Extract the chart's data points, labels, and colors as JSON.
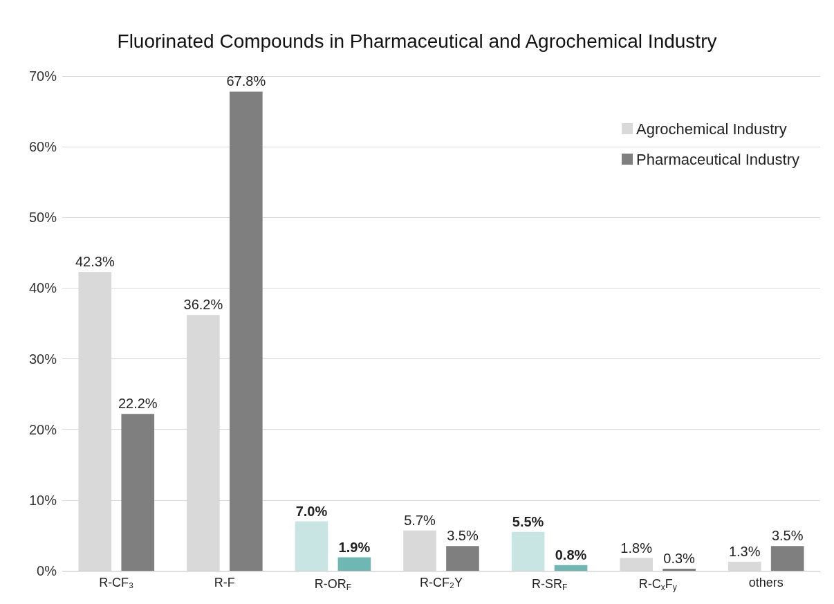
{
  "chart_data": {
    "type": "bar",
    "title": "Fluorinated Compounds in Pharmaceutical and Agrochemical Industry",
    "categories": [
      "R-CF₃",
      "R-F",
      "R-OR$_{F}$",
      "R-CF₂Y",
      "R-SR$_{F}$",
      "R-C$_{x}$F$_{y}$",
      "others"
    ],
    "series": [
      {
        "name": "Agrochemical Industry",
        "color": "#d9d9d9",
        "colors": [
          "#d9d9d9",
          "#d9d9d9",
          "#c8e4e3",
          "#d9d9d9",
          "#c8e4e3",
          "#d9d9d9",
          "#d9d9d9"
        ],
        "values": [
          42.3,
          36.2,
          7.0,
          5.7,
          5.5,
          1.8,
          1.3
        ],
        "value_labels": [
          "42.3%",
          "36.2%",
          "7.0%",
          "5.7%",
          "5.5%",
          "1.8%",
          "1.3%"
        ]
      },
      {
        "name": "Pharmaceutical Industry",
        "color": "#7f7f7f",
        "colors": [
          "#7f7f7f",
          "#7f7f7f",
          "#6fb7b3",
          "#7f7f7f",
          "#6fb7b3",
          "#7f7f7f",
          "#7f7f7f"
        ],
        "values": [
          22.2,
          67.8,
          1.9,
          3.5,
          0.8,
          0.3,
          3.5
        ],
        "value_labels": [
          "22.2%",
          "67.8%",
          "1.9%",
          "3.5%",
          "0.8%",
          "0.3%",
          "3.5%"
        ]
      }
    ],
    "ylim": [
      0,
      70
    ],
    "yticks": [
      {
        "value": 0,
        "label": "0%"
      },
      {
        "value": 10,
        "label": "10%"
      },
      {
        "value": 20,
        "label": "20%"
      },
      {
        "value": 30,
        "label": "30%"
      },
      {
        "value": 40,
        "label": "40%"
      },
      {
        "value": 50,
        "label": "50%"
      },
      {
        "value": 60,
        "label": "60%"
      },
      {
        "value": 70,
        "label": "70%"
      }
    ],
    "grid": "y",
    "legend": "top right"
  }
}
